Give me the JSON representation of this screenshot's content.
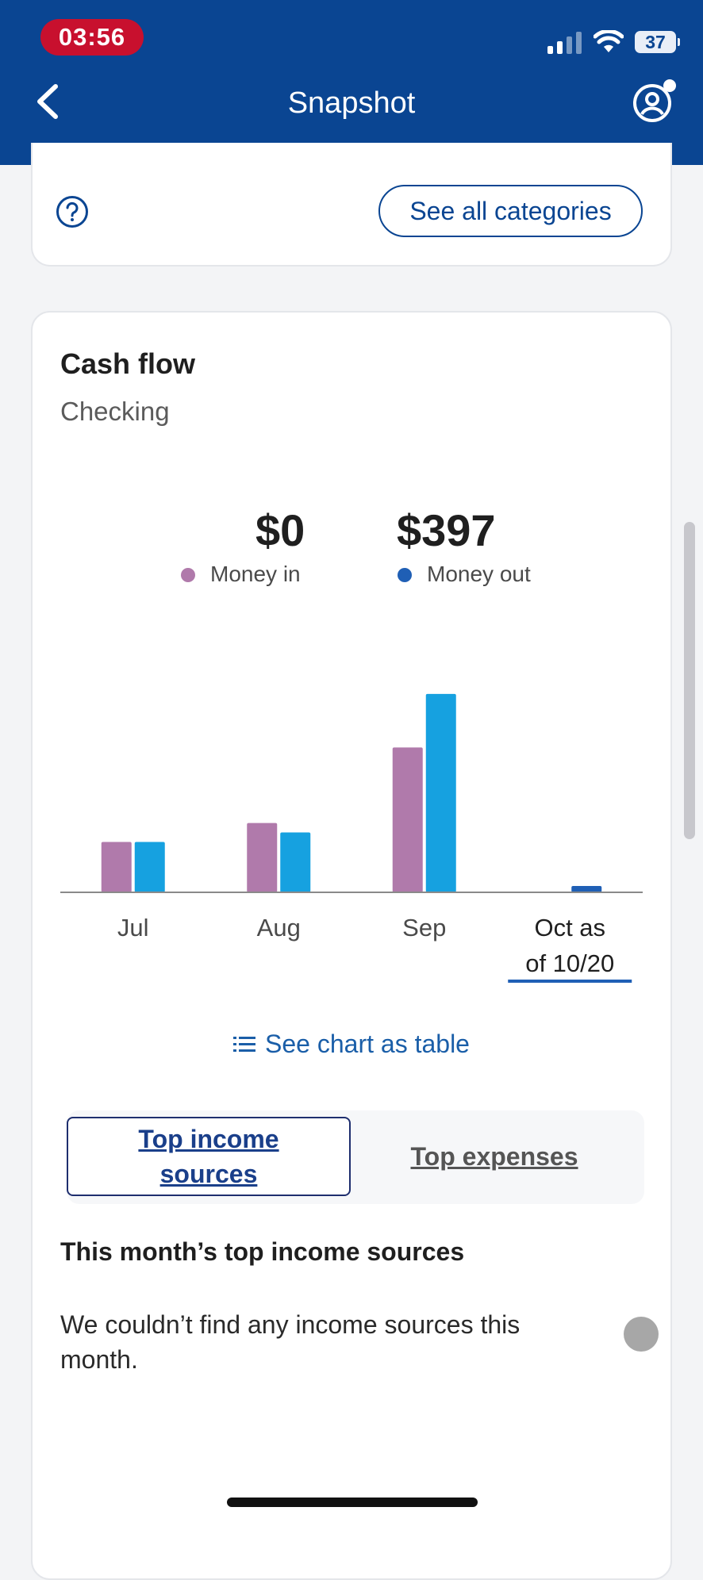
{
  "status_bar": {
    "time": "03:56",
    "battery": "37"
  },
  "nav": {
    "title": "Snapshot"
  },
  "top_card": {
    "see_all_label": "See all categories"
  },
  "cash_flow": {
    "title": "Cash flow",
    "account": "Checking",
    "money_in_value": "$0",
    "money_in_label": "Money in",
    "money_out_value": "$397",
    "money_out_label": "Money out"
  },
  "colors": {
    "money_in": "#b07aab",
    "money_out": "#16a1e0",
    "money_out_current": "#1f5fb5",
    "brand": "#0a4592"
  },
  "chart_data": {
    "type": "bar",
    "categories": [
      "Jul",
      "Aug",
      "Sep",
      "Oct as of 10/20"
    ],
    "series": [
      {
        "name": "Money in",
        "values": [
          80,
          110,
          230,
          0
        ]
      },
      {
        "name": "Money out",
        "values": [
          80,
          95,
          315,
          10
        ]
      }
    ],
    "selected_category": "Oct as of 10/20",
    "ylim": [
      0,
      340
    ],
    "grid": false
  },
  "links": {
    "table_label": "See chart as table"
  },
  "tabs": {
    "income": "Top income sources",
    "expenses": "Top expenses"
  },
  "income_section": {
    "heading": "This month’s top income sources",
    "empty_text": "We couldn’t find any income sources this month."
  }
}
